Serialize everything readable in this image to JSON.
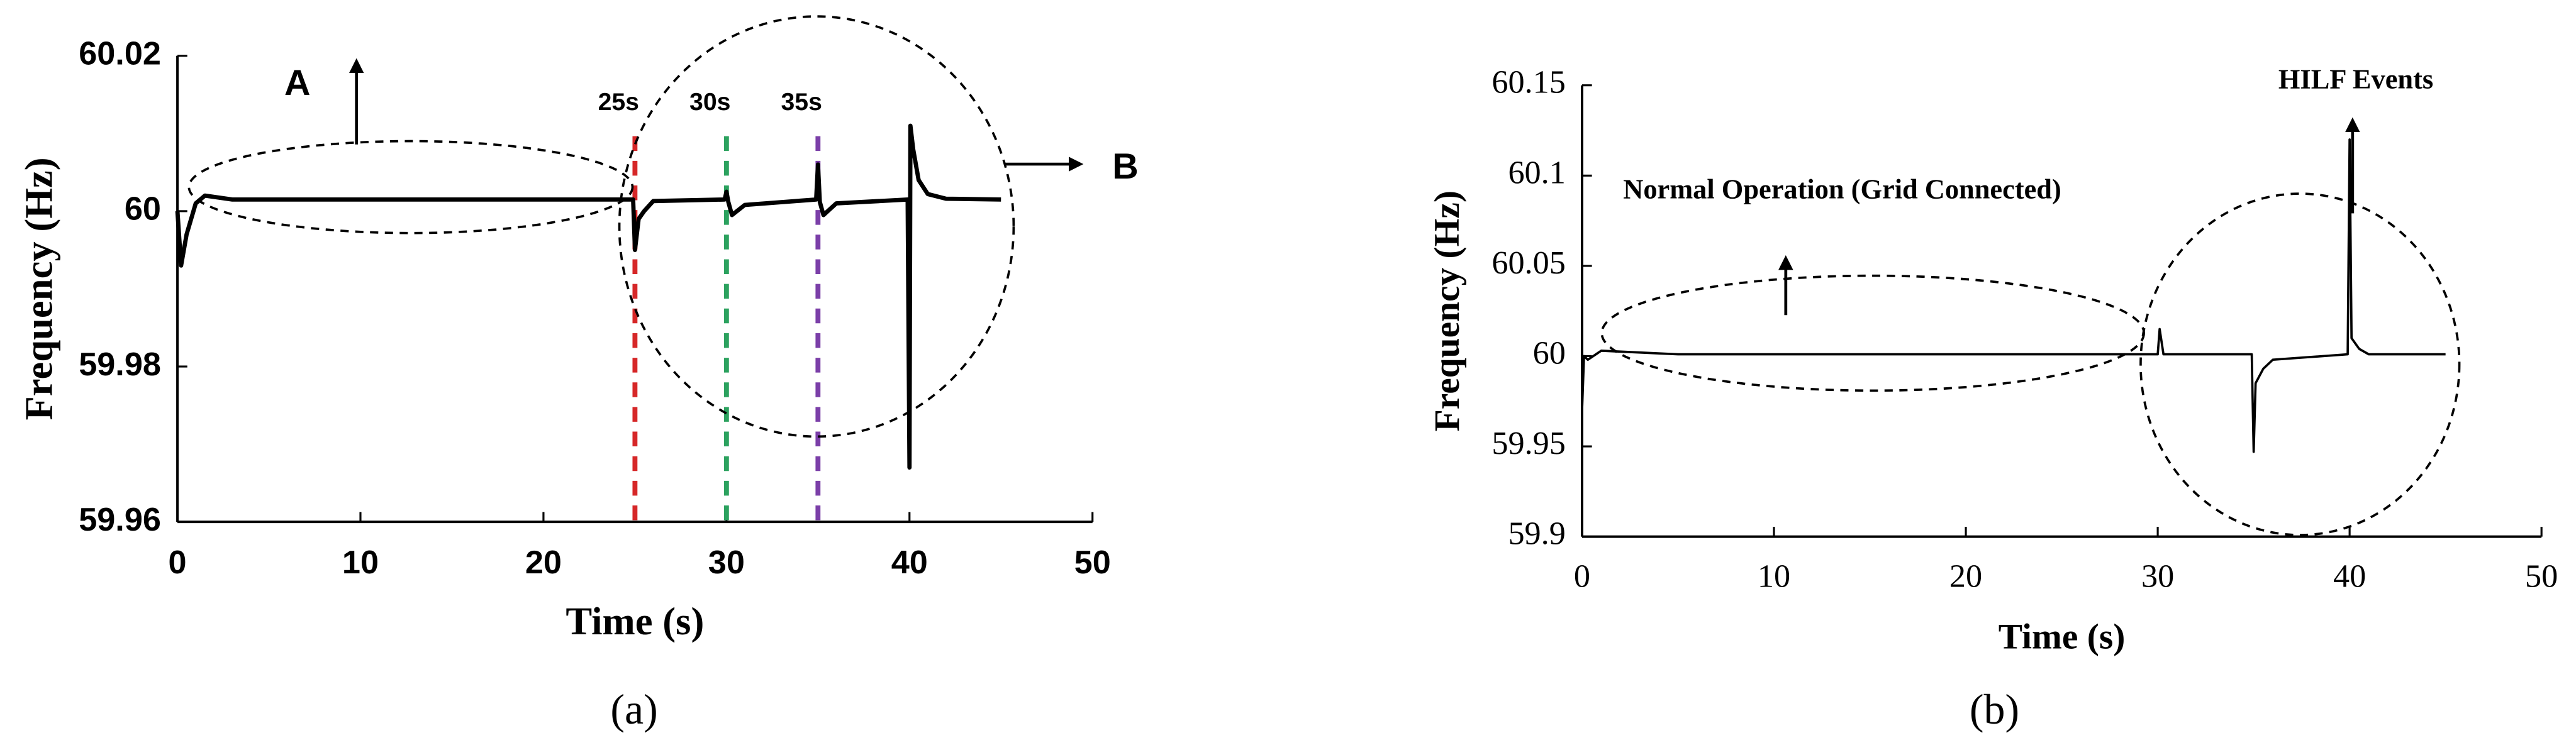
{
  "chart_data": [
    {
      "type": "line",
      "caption": "(a)",
      "xlabel": "Time (s)",
      "ylabel": "Frequency (Hz)",
      "xlim": [
        0,
        50
      ],
      "xticks": [
        0,
        10,
        20,
        30,
        40,
        50
      ],
      "ylim": [
        59.96,
        60.02
      ],
      "yticks": [
        59.96,
        59.98,
        60,
        60.02
      ],
      "series": [
        {
          "color": "#000000",
          "x": [
            0,
            0.2,
            0.5,
            1,
            1.5,
            3,
            10,
            20,
            24.9,
            25,
            25.2,
            25.5,
            26,
            29.9,
            30,
            30.1,
            30.3,
            31,
            34.9,
            35,
            35.1,
            35.3,
            36,
            39.9,
            40,
            40.05,
            40.2,
            40.5,
            41,
            42,
            45
          ],
          "values": [
            60,
            59.993,
            59.997,
            60.001,
            60.002,
            60.0015,
            60.0015,
            60.0015,
            60.0015,
            59.995,
            59.999,
            60.0,
            60.0013,
            60.0015,
            60.0025,
            60.0012,
            59.9995,
            60.0008,
            60.0015,
            60.006,
            60.0012,
            59.9995,
            60.001,
            60.0015,
            59.967,
            60.011,
            60.008,
            60.004,
            60.0022,
            60.0016,
            60.0015
          ]
        }
      ],
      "events": [
        {
          "x": 25,
          "label": "25s",
          "color": "#d62728"
        },
        {
          "x": 30,
          "label": "30s",
          "color": "#2ca25f"
        },
        {
          "x": 35,
          "label": "35s",
          "color": "#7b3fa8"
        }
      ],
      "annotations": [
        "A",
        "B"
      ]
    },
    {
      "type": "line",
      "caption": "(b)",
      "xlabel": "Time (s)",
      "ylabel": "Frequency (Hz)",
      "xlim": [
        0,
        50
      ],
      "xticks": [
        0,
        10,
        20,
        30,
        40,
        50
      ],
      "ylim": [
        59.9,
        60.15
      ],
      "yticks": [
        59.9,
        59.95,
        60,
        60.05,
        60.1,
        60.15
      ],
      "series": [
        {
          "color": "#000000",
          "x": [
            0,
            0.1,
            0.3,
            1,
            5,
            20,
            29,
            30,
            30.1,
            30.3,
            31,
            34.9,
            35,
            35.1,
            35.5,
            36,
            39.9,
            40,
            40.1,
            40.5,
            41,
            45
          ],
          "values": [
            59.97,
            60.0,
            59.998,
            60.003,
            60.001,
            60.001,
            60.001,
            60.001,
            60.015,
            60.001,
            60.001,
            60.001,
            59.947,
            59.985,
            59.993,
            59.998,
            60.001,
            60.12,
            60.01,
            60.004,
            60.001,
            60.001
          ]
        }
      ],
      "annotations": [
        "Normal Operation (Grid Connected)",
        "HILF Events"
      ]
    }
  ]
}
